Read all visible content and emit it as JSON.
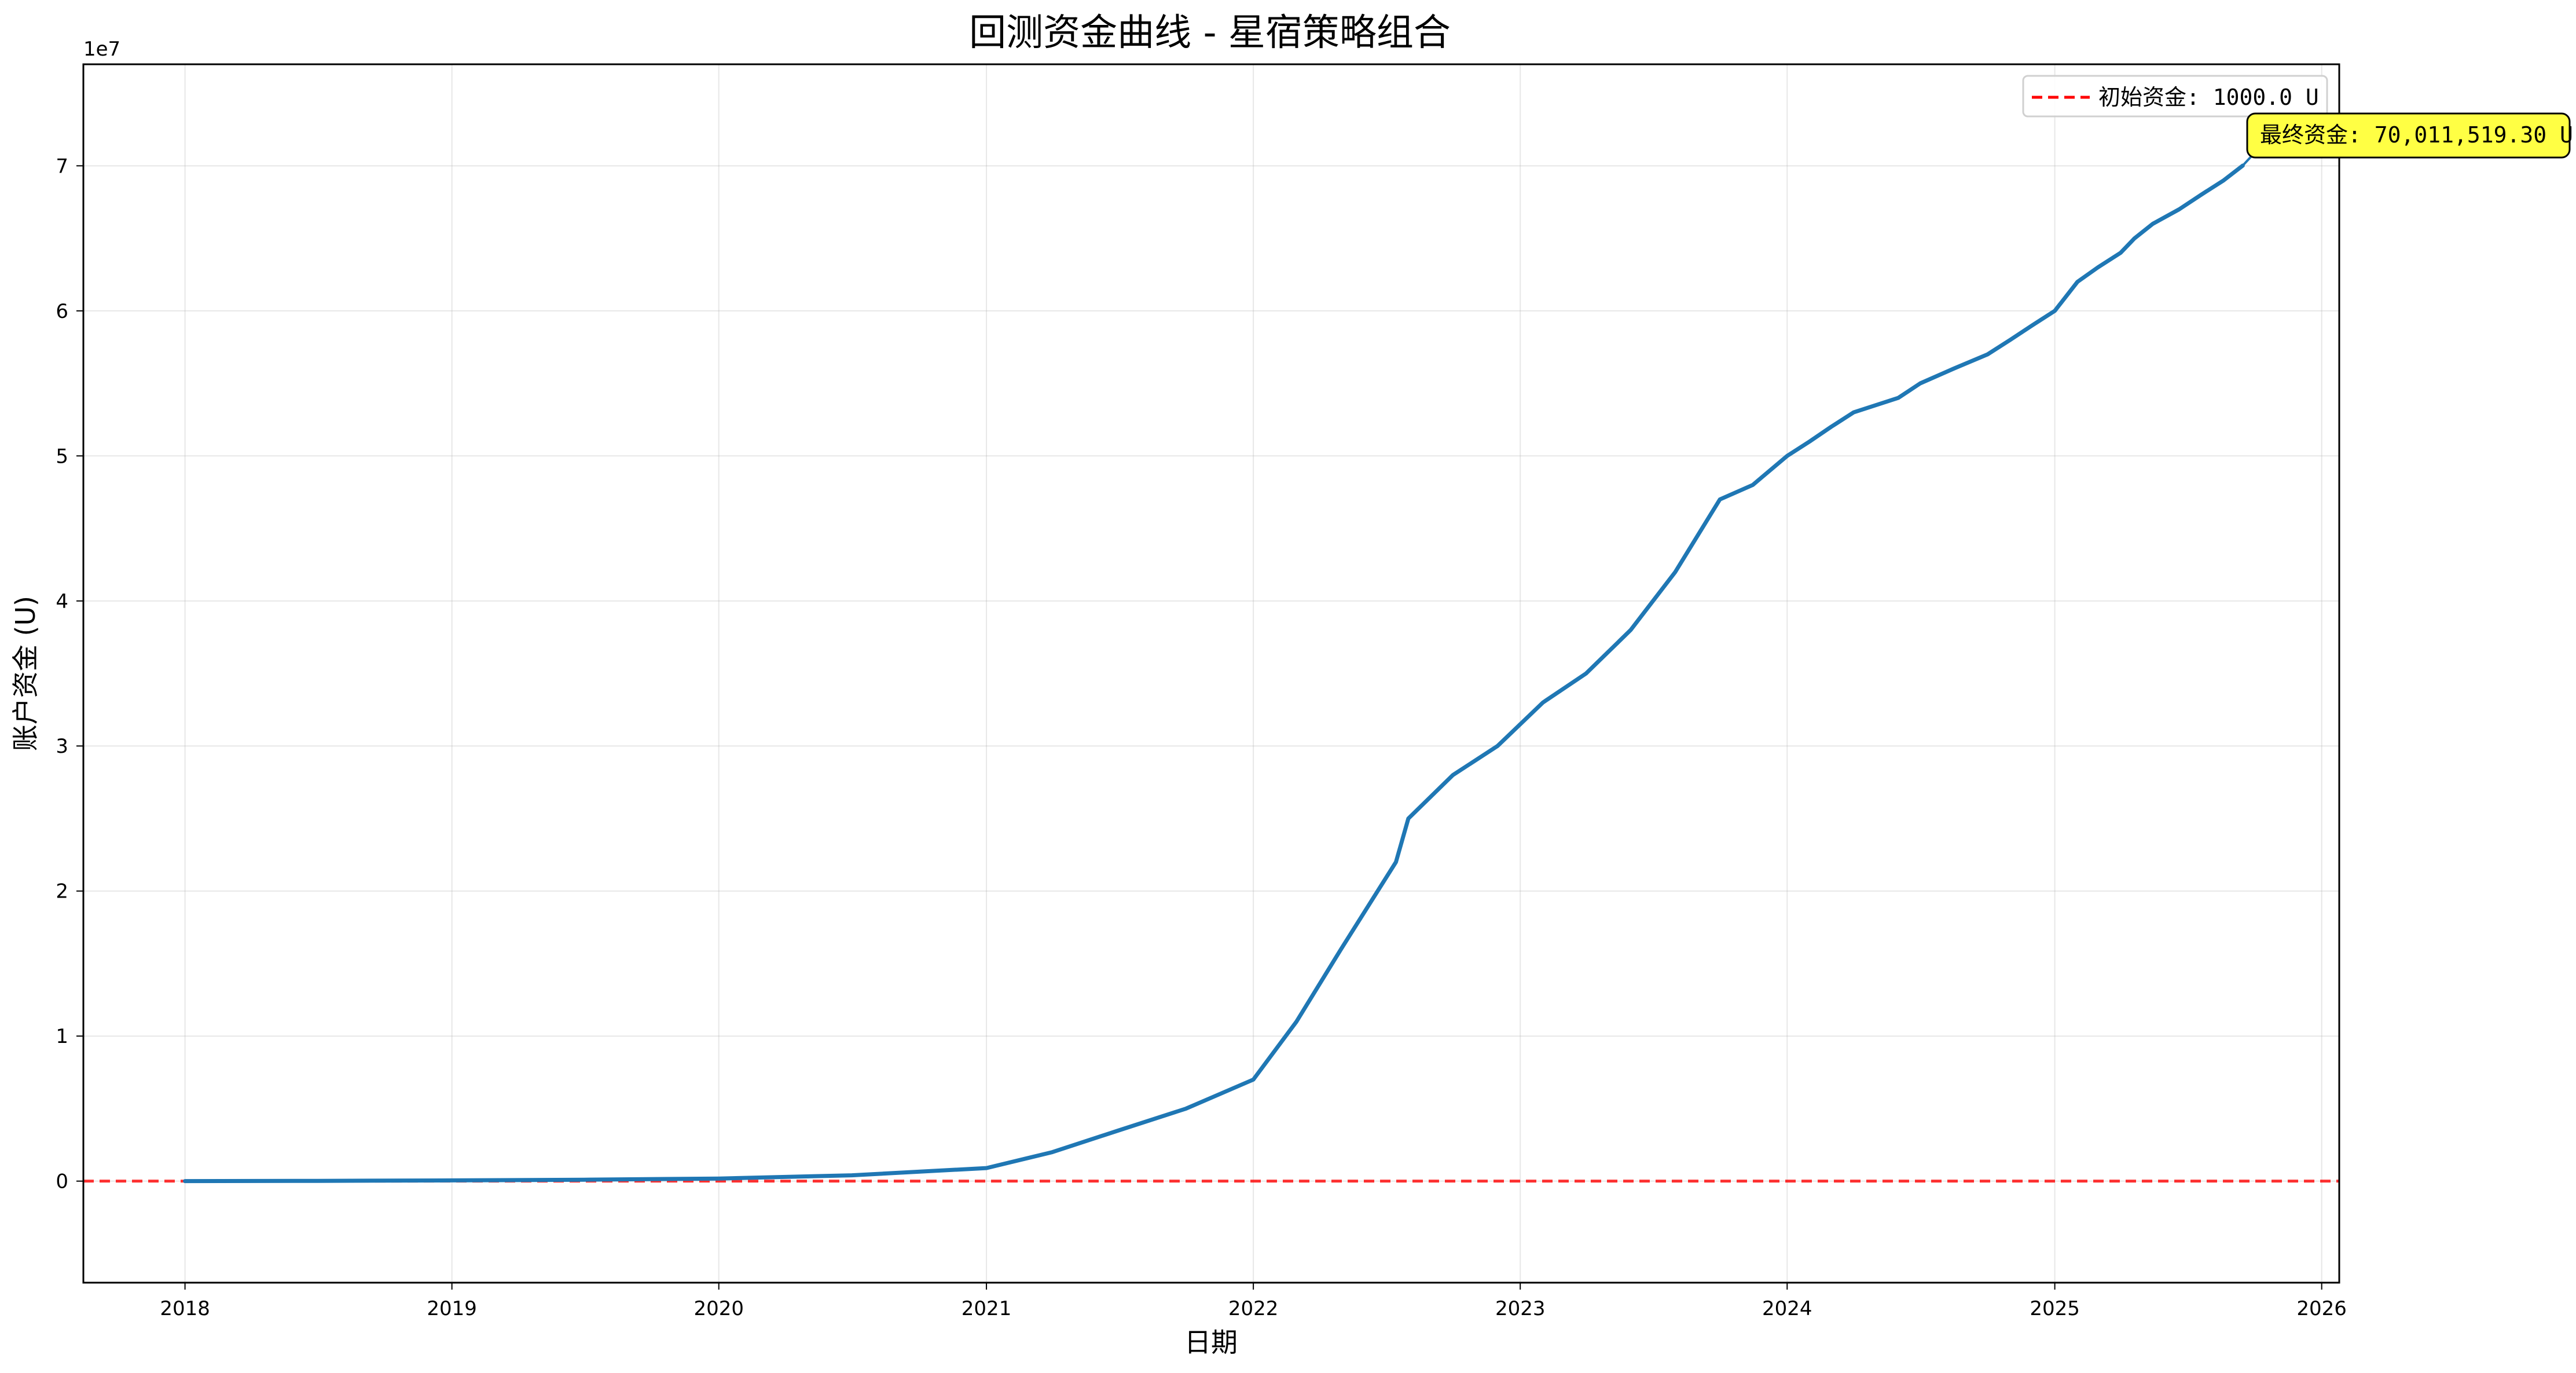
{
  "chart_data": {
    "type": "line",
    "title": "回测资金曲线 - 星宿策略组合",
    "xlabel": "日期",
    "ylabel": "账户资金 (U)",
    "y_scale_label": "1e7",
    "xlim": [
      "2017-08-15",
      "2026-01-25"
    ],
    "ylim": [
      -7000000,
      77000000
    ],
    "x_ticks": [
      {
        "value": "2018-01-01",
        "label": "2018"
      },
      {
        "value": "2019-01-01",
        "label": "2019"
      },
      {
        "value": "2020-01-01",
        "label": "2020"
      },
      {
        "value": "2021-01-01",
        "label": "2021"
      },
      {
        "value": "2022-01-01",
        "label": "2022"
      },
      {
        "value": "2023-01-01",
        "label": "2023"
      },
      {
        "value": "2024-01-01",
        "label": "2024"
      },
      {
        "value": "2025-01-01",
        "label": "2025"
      },
      {
        "value": "2026-01-01",
        "label": "2026"
      }
    ],
    "y_ticks": [
      {
        "value": 0,
        "label": "0"
      },
      {
        "value": 10000000,
        "label": "1"
      },
      {
        "value": 20000000,
        "label": "2"
      },
      {
        "value": 30000000,
        "label": "3"
      },
      {
        "value": 40000000,
        "label": "4"
      },
      {
        "value": 50000000,
        "label": "5"
      },
      {
        "value": 60000000,
        "label": "6"
      },
      {
        "value": 70000000,
        "label": "7"
      }
    ],
    "grid": true,
    "legend_position": "top-right",
    "series": [
      {
        "color": "#1f77b4",
        "x": [
          "2018-01-01",
          "2018-07-01",
          "2019-01-01",
          "2019-07-01",
          "2020-01-01",
          "2020-07-01",
          "2021-01-01",
          "2021-04-01",
          "2021-07-01",
          "2021-10-01",
          "2022-01-01",
          "2022-03-01",
          "2022-05-01",
          "2022-07-15",
          "2022-08-01",
          "2022-10-01",
          "2022-12-01",
          "2023-02-01",
          "2023-04-01",
          "2023-06-01",
          "2023-08-01",
          "2023-10-01",
          "2023-11-15",
          "2024-01-01",
          "2024-02-01",
          "2024-03-01",
          "2024-04-01",
          "2024-06-01",
          "2024-07-01",
          "2024-08-15",
          "2024-10-01",
          "2024-11-01",
          "2024-12-01",
          "2025-01-01",
          "2025-02-01",
          "2025-03-01",
          "2025-04-01",
          "2025-04-20",
          "2025-05-15",
          "2025-06-20",
          "2025-07-20",
          "2025-08-20",
          "2025-09-15"
        ],
        "y": [
          1000,
          20000,
          50000,
          100000,
          180000,
          400000,
          900000,
          2000000,
          3500000,
          5000000,
          7000000,
          11000000,
          16000000,
          22000000,
          25000000,
          28000000,
          30000000,
          33000000,
          35000000,
          38000000,
          42000000,
          47000000,
          48000000,
          50000000,
          51000000,
          52000000,
          53000000,
          54000000,
          55000000,
          56000000,
          57000000,
          58000000,
          59000000,
          60000000,
          62000000,
          63000000,
          64000000,
          65000000,
          66000000,
          67000000,
          68000000,
          69000000,
          70011519.3
        ],
        "y_note": "placeholder"
      },
      {
        "name": "初始资金: 1000.0 U",
        "color": "#ff0000",
        "style": "dashed",
        "y": 1000
      }
    ],
    "annotation": {
      "text": "最终资金: 70,011,519.30 U",
      "x": "2025-09-15",
      "y": 70011519.3,
      "background": "#ffff44"
    }
  }
}
